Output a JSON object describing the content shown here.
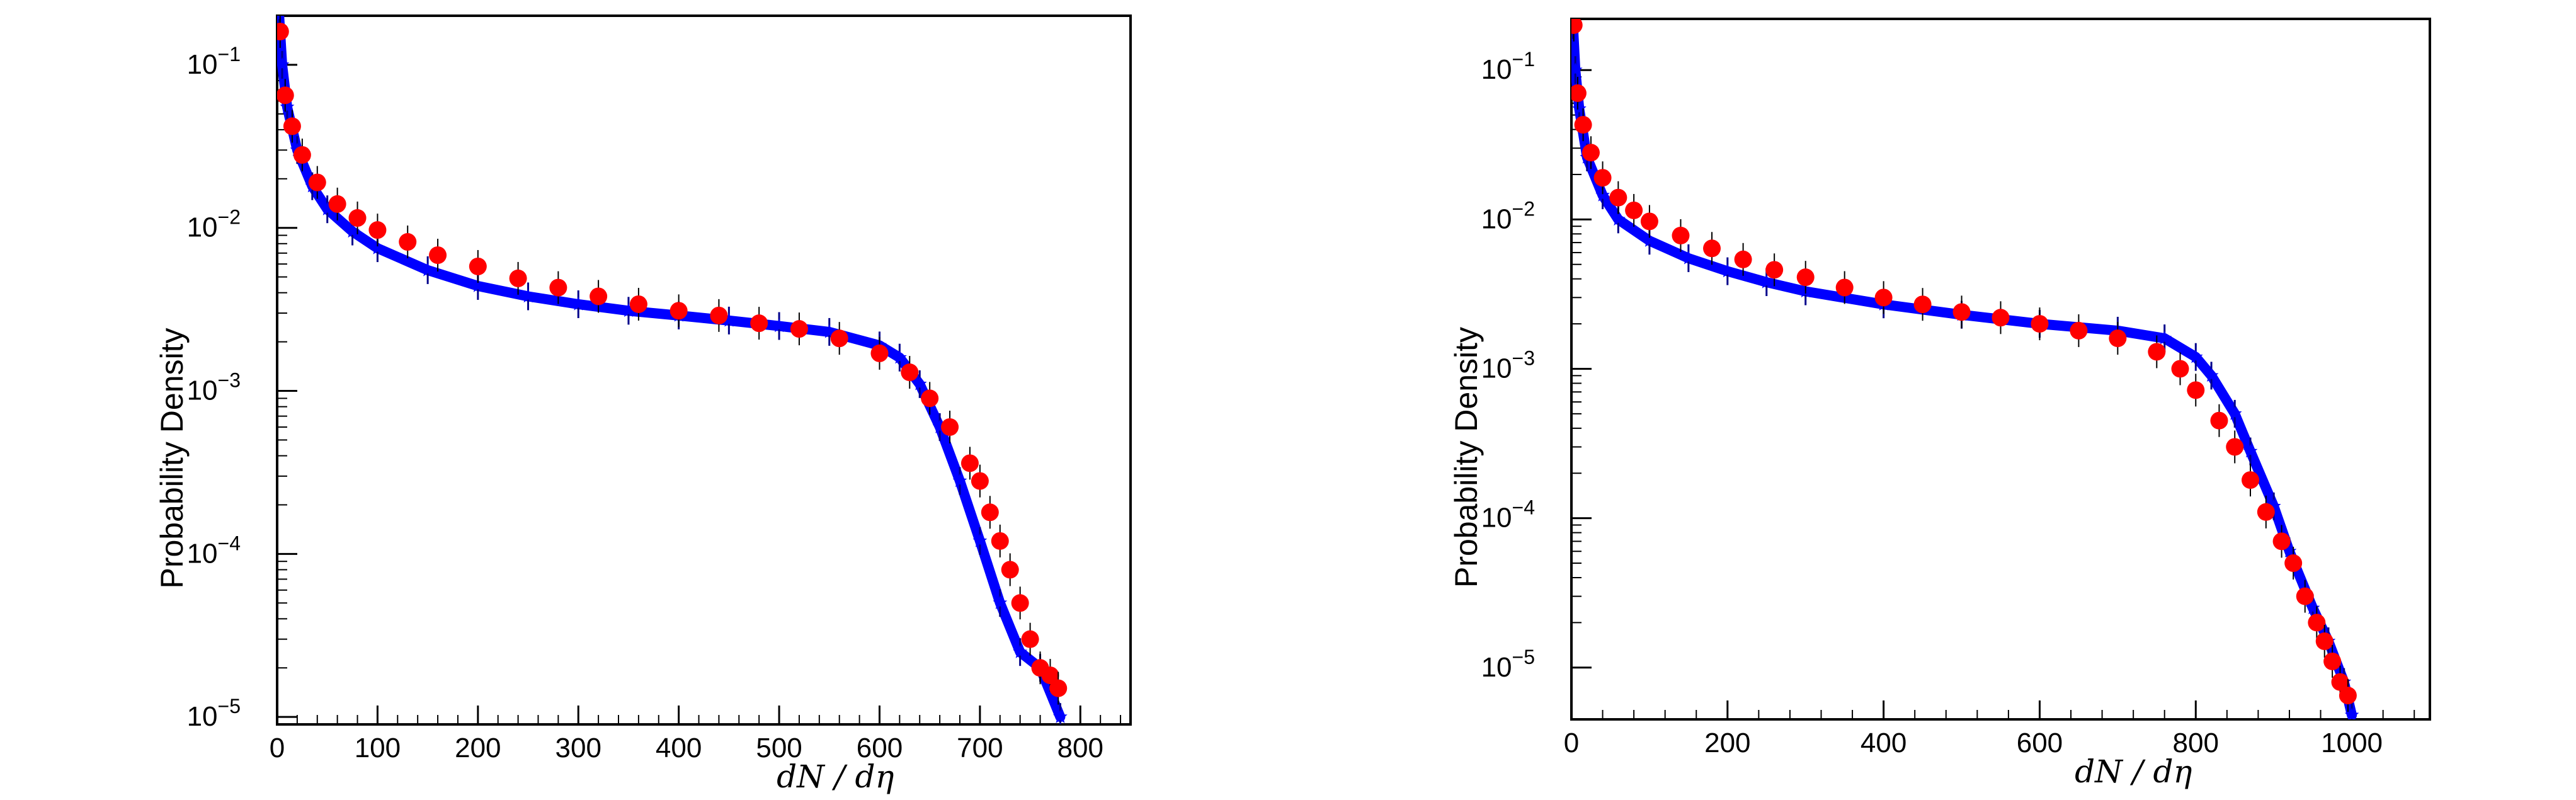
{
  "chart_data": [
    {
      "type": "scatter",
      "xlabel": "dN / dη",
      "ylabel": "Probability Density",
      "x_scale": "linear",
      "y_scale": "log",
      "xlim": [
        0,
        850
      ],
      "ylim": [
        9e-06,
        0.2
      ],
      "x_ticks": [
        "0",
        "100",
        "200",
        "300",
        "400",
        "500",
        "600",
        "700",
        "800"
      ],
      "y_ticks": [
        "10^-1",
        "10^-2",
        "10^-3",
        "10^-4",
        "10^-5"
      ],
      "grid": false,
      "legend": "none",
      "series": [
        {
          "marker": "star-line",
          "color": "#0000ff",
          "x": [
            2,
            5,
            10,
            20,
            35,
            50,
            75,
            100,
            150,
            200,
            250,
            300,
            350,
            400,
            450,
            500,
            550,
            600,
            620,
            640,
            660,
            680,
            700,
            720,
            740,
            760,
            780
          ],
          "y": [
            0.2,
            0.1,
            0.055,
            0.03,
            0.018,
            0.013,
            0.0095,
            0.0075,
            0.0055,
            0.0044,
            0.0038,
            0.0034,
            0.0031,
            0.0029,
            0.0027,
            0.0025,
            0.0023,
            0.0019,
            0.0016,
            0.0011,
            0.0006,
            0.00028,
            0.00012,
            5e-05,
            2.5e-05,
            2e-05,
            1e-05
          ]
        },
        {
          "marker": "circle",
          "color": "#ff0000",
          "x": [
            3,
            8,
            15,
            25,
            40,
            60,
            80,
            100,
            130,
            160,
            200,
            240,
            280,
            320,
            360,
            400,
            440,
            480,
            520,
            560,
            600,
            630,
            650,
            670,
            690,
            700,
            710,
            720,
            730,
            740,
            750,
            760,
            770,
            778
          ],
          "y": [
            0.16,
            0.065,
            0.042,
            0.028,
            0.019,
            0.014,
            0.0115,
            0.0097,
            0.0082,
            0.0068,
            0.0058,
            0.0049,
            0.0043,
            0.0038,
            0.0034,
            0.0031,
            0.0029,
            0.0026,
            0.0024,
            0.0021,
            0.0017,
            0.0013,
            0.0009,
            0.0006,
            0.00036,
            0.00028,
            0.00018,
            0.00012,
            8e-05,
            5e-05,
            3e-05,
            2e-05,
            1.8e-05,
            1.5e-05
          ]
        }
      ]
    },
    {
      "type": "scatter",
      "xlabel": "dN / dη",
      "ylabel": "Probability Density",
      "x_scale": "linear",
      "y_scale": "log",
      "xlim": [
        0,
        1100
      ],
      "ylim": [
        4.5e-06,
        0.22
      ],
      "x_ticks": [
        "0",
        "200",
        "400",
        "600",
        "800",
        "1000"
      ],
      "y_ticks": [
        "10^-1",
        "10^-2",
        "10^-3",
        "10^-4",
        "10^-5"
      ],
      "grid": false,
      "legend": "none",
      "series": [
        {
          "marker": "star-line",
          "color": "#0000ff",
          "x": [
            2,
            5,
            10,
            20,
            40,
            60,
            100,
            150,
            200,
            250,
            300,
            400,
            500,
            600,
            700,
            760,
            800,
            820,
            850,
            870,
            900,
            920,
            950,
            970,
            990,
            1000
          ],
          "y": [
            0.2,
            0.1,
            0.055,
            0.026,
            0.0145,
            0.01,
            0.0072,
            0.0055,
            0.0045,
            0.0038,
            0.0033,
            0.0027,
            0.0023,
            0.002,
            0.0018,
            0.0016,
            0.0012,
            0.0009,
            0.0005,
            0.00028,
            0.00012,
            6e-05,
            2.5e-05,
            1.5e-05,
            8e-06,
            4.8e-06
          ]
        },
        {
          "marker": "circle",
          "color": "#ff0000",
          "x": [
            3,
            8,
            15,
            25,
            40,
            60,
            80,
            100,
            140,
            180,
            220,
            260,
            300,
            350,
            400,
            450,
            500,
            550,
            600,
            650,
            700,
            750,
            780,
            800,
            830,
            850,
            870,
            890,
            910,
            925,
            940,
            955,
            965,
            975,
            985,
            995
          ],
          "y": [
            0.2,
            0.07,
            0.043,
            0.028,
            0.019,
            0.014,
            0.0115,
            0.0097,
            0.0078,
            0.0064,
            0.0054,
            0.0046,
            0.0041,
            0.0035,
            0.003,
            0.0027,
            0.0024,
            0.0022,
            0.002,
            0.0018,
            0.0016,
            0.0013,
            0.001,
            0.00072,
            0.00045,
            0.0003,
            0.00018,
            0.00011,
            7e-05,
            5e-05,
            3e-05,
            2e-05,
            1.5e-05,
            1.1e-05,
            8e-06,
            6.5e-06
          ]
        }
      ]
    }
  ]
}
